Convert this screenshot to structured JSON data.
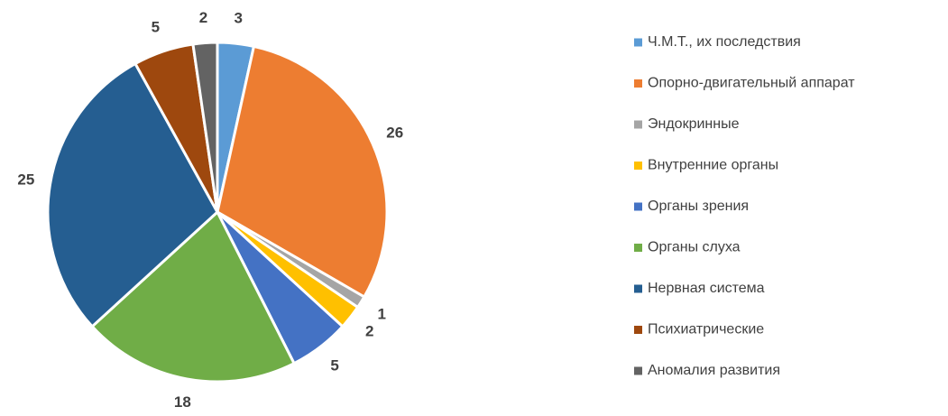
{
  "chart_data": {
    "type": "pie",
    "categories": [
      "Ч.М.Т., их последствия",
      "Опорно-двигательный аппарат",
      "Эндокринные",
      "Внутренние органы",
      "Органы зрения",
      "Органы слуха",
      "Нервная система",
      "Психиатрические",
      "Аномалия развития"
    ],
    "values": [
      3,
      26,
      1,
      2,
      5,
      18,
      25,
      5,
      2
    ],
    "colors": [
      "#5b9bd5",
      "#ed7d31",
      "#a5a5a5",
      "#ffc000",
      "#4472c4",
      "#70ad47",
      "#255e91",
      "#9e480e",
      "#636363"
    ],
    "legend": "right"
  }
}
